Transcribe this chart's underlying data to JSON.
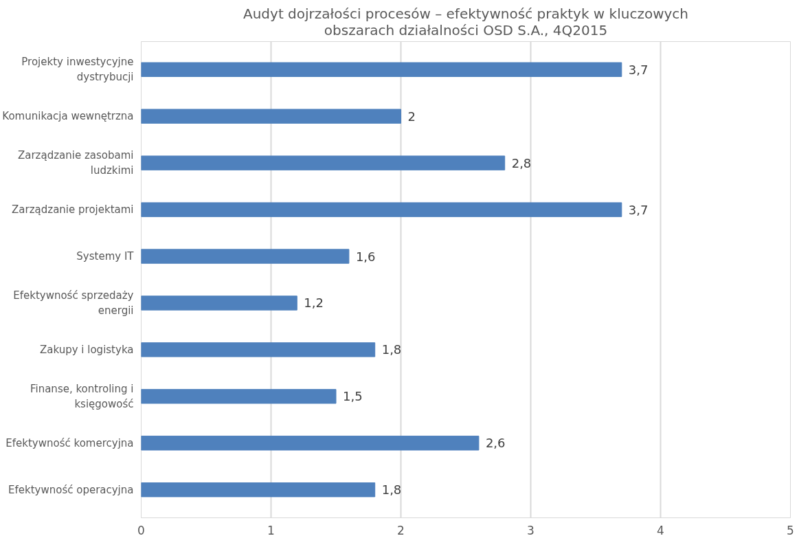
{
  "chart_data": {
    "type": "bar",
    "orientation": "horizontal",
    "title": "Audyt dojrzałości procesów – efektywność praktyk w kluczowych obszarach działalności OSD S.A., 4Q2015",
    "categories": [
      "Projekty inwestycyjne dystrybucji",
      "Komunikacja wewnętrzna",
      "Zarządzanie zasobami ludzkimi",
      "Zarządzanie projektami",
      "Systemy IT",
      "Efektywność sprzedaży energii",
      "Zakupy i logistyka",
      "Finanse, kontroling i księgowość",
      "Efektywność komercyjna",
      "Efektywność operacyjna"
    ],
    "values": [
      3.7,
      2,
      2.8,
      3.7,
      1.6,
      1.2,
      1.8,
      1.5,
      2.6,
      1.8
    ],
    "value_labels": [
      "3,7",
      "2",
      "2,8",
      "3,7",
      "1,6",
      "1,2",
      "1,8",
      "1,5",
      "2,6",
      "1,8"
    ],
    "color": "#4f81bd",
    "xlim": [
      0,
      5
    ],
    "xticks": [
      0,
      1,
      2,
      3,
      4,
      5
    ],
    "grid": "x"
  }
}
